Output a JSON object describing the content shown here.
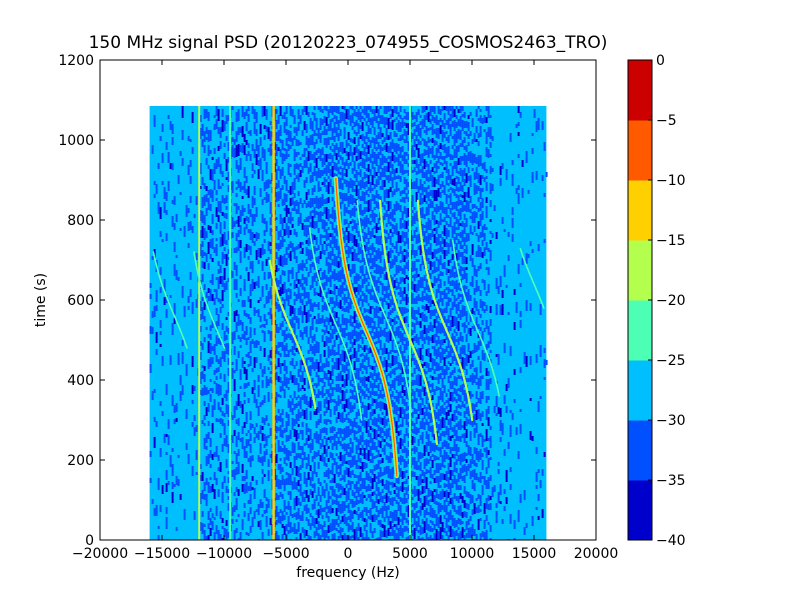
{
  "chart_data": {
    "type": "heatmap",
    "title": "150 MHz signal PSD (20120223_074955_COSMOS2463_TRO)",
    "xlabel": "frequency (Hz)",
    "ylabel": "time (s)",
    "xlim": [
      -20000,
      20000
    ],
    "ylim": [
      0,
      1200
    ],
    "xticks": [
      -20000,
      -15000,
      -10000,
      -5000,
      0,
      5000,
      10000,
      15000,
      20000
    ],
    "xtick_labels": [
      "−20000",
      "−15000",
      "−10000",
      "−5000",
      "0",
      "5000",
      "10000",
      "15000",
      "20000"
    ],
    "yticks": [
      0,
      200,
      400,
      600,
      800,
      1000,
      1200
    ],
    "ytick_labels": [
      "0",
      "200",
      "400",
      "600",
      "800",
      "1000",
      "1200"
    ],
    "data_extent": {
      "x": [
        -16000,
        16000
      ],
      "y": [
        0,
        1085
      ]
    },
    "colorbar": {
      "levels": [
        -40,
        -35,
        -30,
        -25,
        -20,
        -15,
        -10,
        -5,
        0
      ],
      "tick_labels": [
        "−40",
        "−35",
        "−30",
        "−25",
        "−20",
        "−15",
        "−10",
        "−5",
        "0"
      ],
      "colors": [
        "#0000cd",
        "#0050ff",
        "#00bfff",
        "#4dffb4",
        "#b4ff4d",
        "#ffd000",
        "#ff5a00",
        "#cd0000"
      ]
    },
    "colors": {
      "background": "#00bfff",
      "noise": "#0050ff",
      "trace_outer": "#4dffb4",
      "trace_inner": "#ffd000",
      "trace_peak": "#ff5a00"
    },
    "constant_lines": [
      {
        "freq": -6000,
        "level": -15
      },
      {
        "freq": -12000,
        "level": -20
      },
      {
        "freq": -9500,
        "level": -25
      },
      {
        "freq": 5000,
        "level": -25
      }
    ],
    "doppler_traces": [
      {
        "center_freq": 1500,
        "center_time": 520,
        "amplitude": 6500,
        "width": 150,
        "t_start": 160,
        "t_end": 905,
        "level": -5
      },
      {
        "center_freq": -4500,
        "center_time": 520,
        "amplitude": 6500,
        "width": 150,
        "t_start": 330,
        "t_end": 700,
        "level": -20
      },
      {
        "center_freq": 5000,
        "center_time": 500,
        "amplitude": 6500,
        "width": 150,
        "t_start": 240,
        "t_end": 850,
        "level": -20
      },
      {
        "center_freq": 8000,
        "center_time": 520,
        "amplitude": 6500,
        "width": 150,
        "t_start": 300,
        "t_end": 850,
        "level": -20
      },
      {
        "center_freq": 3000,
        "center_time": 560,
        "amplitude": 6500,
        "width": 150,
        "t_start": 320,
        "t_end": 850,
        "level": -25
      },
      {
        "center_freq": -1000,
        "center_time": 540,
        "amplitude": 6500,
        "width": 150,
        "t_start": 300,
        "t_end": 780,
        "level": -25
      },
      {
        "center_freq": 10500,
        "center_time": 520,
        "amplitude": 6500,
        "width": 150,
        "t_start": 360,
        "t_end": 750,
        "level": -25
      },
      {
        "center_freq": -14000,
        "center_time": 560,
        "amplitude": 6500,
        "width": 150,
        "t_start": 480,
        "t_end": 720,
        "level": -25
      },
      {
        "center_freq": -10500,
        "center_time": 520,
        "amplitude": 6500,
        "width": 150,
        "t_start": 480,
        "t_end": 720,
        "level": -25
      },
      {
        "center_freq": 15000,
        "center_time": 640,
        "amplitude": 6500,
        "width": 150,
        "t_start": 580,
        "t_end": 730,
        "level": -25
      }
    ]
  }
}
